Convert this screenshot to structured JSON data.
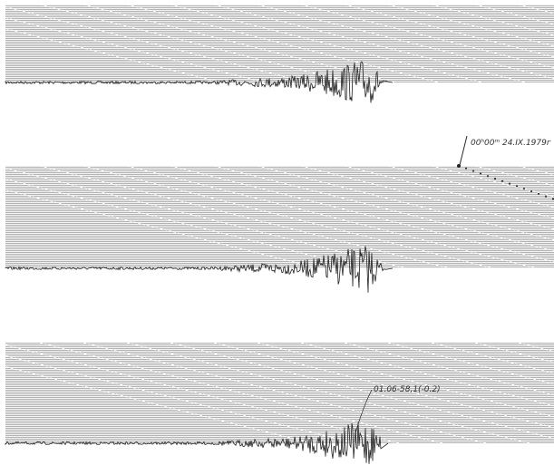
{
  "annotations": {
    "time_mark": "00ʰ00ᵐ 24.IX.1979г",
    "event_mark": "01.06-58,1(-0.2)"
  }
}
